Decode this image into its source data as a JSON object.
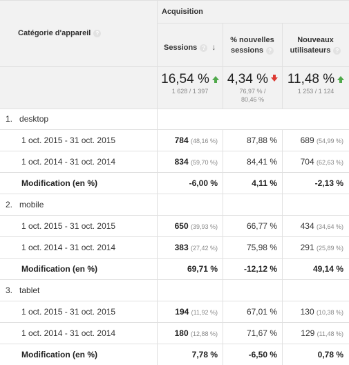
{
  "header": {
    "dimension_label": "Catégorie d'appareil",
    "group_label": "Acquisition",
    "columns": [
      {
        "label_1": "Sessions",
        "label_2": ""
      },
      {
        "label_1": "% nouvelles",
        "label_2": "sessions"
      },
      {
        "label_1": "Nouveaux",
        "label_2": "utilisateurs"
      }
    ]
  },
  "totals": [
    {
      "value": "16,54 %",
      "trend": "up",
      "sub_1": "1 628 / 1 397",
      "sub_2": ""
    },
    {
      "value": "4,34 %",
      "trend": "down",
      "sub_1": "76,97 % /",
      "sub_2": "80,46 %"
    },
    {
      "value": "11,48 %",
      "trend": "up",
      "sub_1": "1 253 / 1 124",
      "sub_2": ""
    }
  ],
  "groups": [
    {
      "index": "1.",
      "name": "desktop",
      "rows": [
        {
          "label": "1 oct. 2015 - 31 oct. 2015",
          "sessions": "784",
          "sessions_pct": "(48,16 %)",
          "new_sessions": "87,88 %",
          "new_users": "689",
          "new_users_pct": "(54,99 %)"
        },
        {
          "label": "1 oct. 2014 - 31 oct. 2014",
          "sessions": "834",
          "sessions_pct": "(59,70 %)",
          "new_sessions": "84,41 %",
          "new_users": "704",
          "new_users_pct": "(62,63 %)"
        }
      ],
      "change": {
        "label": "Modification (en %)",
        "sessions": "-6,00 %",
        "new_sessions": "4,11 %",
        "new_users": "-2,13 %"
      }
    },
    {
      "index": "2.",
      "name": "mobile",
      "rows": [
        {
          "label": "1 oct. 2015 - 31 oct. 2015",
          "sessions": "650",
          "sessions_pct": "(39,93 %)",
          "new_sessions": "66,77 %",
          "new_users": "434",
          "new_users_pct": "(34,64 %)"
        },
        {
          "label": "1 oct. 2014 - 31 oct. 2014",
          "sessions": "383",
          "sessions_pct": "(27,42 %)",
          "new_sessions": "75,98 %",
          "new_users": "291",
          "new_users_pct": "(25,89 %)"
        }
      ],
      "change": {
        "label": "Modification (en %)",
        "sessions": "69,71 %",
        "new_sessions": "-12,12 %",
        "new_users": "49,14 %"
      }
    },
    {
      "index": "3.",
      "name": "tablet",
      "rows": [
        {
          "label": "1 oct. 2015 - 31 oct. 2015",
          "sessions": "194",
          "sessions_pct": "(11,92 %)",
          "new_sessions": "67,01 %",
          "new_users": "130",
          "new_users_pct": "(10,38 %)"
        },
        {
          "label": "1 oct. 2014 - 31 oct. 2014",
          "sessions": "180",
          "sessions_pct": "(12,88 %)",
          "new_sessions": "71,67 %",
          "new_users": "129",
          "new_users_pct": "(11,48 %)"
        }
      ],
      "change": {
        "label": "Modification (en %)",
        "sessions": "7,78 %",
        "new_sessions": "-6,50 %",
        "new_users": "0,78 %"
      }
    }
  ],
  "colors": {
    "up": "#50a94b",
    "down": "#dd3a33",
    "header_bg": "#f2f2f2",
    "grid": "#e0e0e0"
  }
}
